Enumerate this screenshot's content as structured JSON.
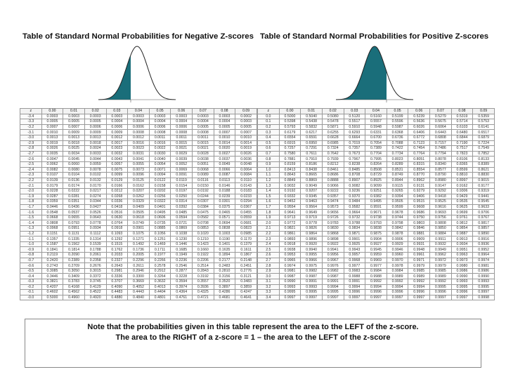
{
  "negative_table": {
    "title": "Table of Standard Normal Probabilities for Negative Z-scores",
    "headers": [
      "z",
      "0.00",
      "0.01",
      "0.02",
      "0.03",
      "0.04",
      "0.05",
      "0.06",
      "0.07",
      "0.08",
      "0.09"
    ],
    "rows": [
      [
        "-3.4",
        "0.0003",
        "0.0003",
        "0.0003",
        "0.0003",
        "0.0003",
        "0.0003",
        "0.0003",
        "0.0003",
        "0.0003",
        "0.0002"
      ],
      [
        "-3.3",
        "0.0005",
        "0.0005",
        "0.0005",
        "0.0004",
        "0.0004",
        "0.0004",
        "0.0004",
        "0.0004",
        "0.0004",
        "0.0003"
      ],
      [
        "-3.2",
        "0.0007",
        "0.0007",
        "0.0006",
        "0.0006",
        "0.0006",
        "0.0006",
        "0.0006",
        "0.0005",
        "0.0005",
        "0.0005"
      ],
      [
        "-3.1",
        "0.0010",
        "0.0009",
        "0.0009",
        "0.0009",
        "0.0008",
        "0.0008",
        "0.0008",
        "0.0008",
        "0.0007",
        "0.0007"
      ],
      [
        "-3.0",
        "0.0013",
        "0.0013",
        "0.0013",
        "0.0012",
        "0.0012",
        "0.0011",
        "0.0011",
        "0.0011",
        "0.0010",
        "0.0010"
      ],
      [
        "-2.9",
        "0.0019",
        "0.0018",
        "0.0018",
        "0.0017",
        "0.0016",
        "0.0016",
        "0.0015",
        "0.0015",
        "0.0014",
        "0.0014"
      ],
      [
        "-2.8",
        "0.0026",
        "0.0025",
        "0.0024",
        "0.0023",
        "0.0023",
        "0.0022",
        "0.0021",
        "0.0021",
        "0.0020",
        "0.0019"
      ],
      [
        "-2.7",
        "0.0035",
        "0.0034",
        "0.0033",
        "0.0032",
        "0.0031",
        "0.0030",
        "0.0029",
        "0.0028",
        "0.0027",
        "0.0026"
      ],
      [
        "-2.6",
        "0.0047",
        "0.0045",
        "0.0044",
        "0.0043",
        "0.0041",
        "0.0040",
        "0.0039",
        "0.0038",
        "0.0037",
        "0.0036"
      ],
      [
        "-2.5",
        "0.0062",
        "0.0060",
        "0.0059",
        "0.0057",
        "0.0055",
        "0.0054",
        "0.0052",
        "0.0051",
        "0.0049",
        "0.0048"
      ],
      [
        "-2.4",
        "0.0082",
        "0.0080",
        "0.0078",
        "0.0075",
        "0.0073",
        "0.0071",
        "0.0069",
        "0.0068",
        "0.0066",
        "0.0064"
      ],
      [
        "-2.3",
        "0.0107",
        "0.0104",
        "0.0102",
        "0.0099",
        "0.0096",
        "0.0094",
        "0.0091",
        "0.0089",
        "0.0087",
        "0.0084"
      ],
      [
        "-2.2",
        "0.0139",
        "0.0136",
        "0.0132",
        "0.0129",
        "0.0125",
        "0.0122",
        "0.0119",
        "0.0116",
        "0.0113",
        "0.0110"
      ],
      [
        "-2.1",
        "0.0179",
        "0.0174",
        "0.0170",
        "0.0166",
        "0.0162",
        "0.0158",
        "0.0154",
        "0.0150",
        "0.0146",
        "0.0143"
      ],
      [
        "-2.0",
        "0.0228",
        "0.0222",
        "0.0217",
        "0.0212",
        "0.0207",
        "0.0202",
        "0.0197",
        "0.0192",
        "0.0188",
        "0.0183"
      ],
      [
        "-1.9",
        "0.0287",
        "0.0281",
        "0.0274",
        "0.0268",
        "0.0262",
        "0.0256",
        "0.0250",
        "0.0244",
        "0.0239",
        "0.0233"
      ],
      [
        "-1.8",
        "0.0359",
        "0.0351",
        "0.0344",
        "0.0336",
        "0.0329",
        "0.0322",
        "0.0314",
        "0.0307",
        "0.0301",
        "0.0294"
      ],
      [
        "-1.7",
        "0.0446",
        "0.0436",
        "0.0427",
        "0.0418",
        "0.0409",
        "0.0401",
        "0.0392",
        "0.0384",
        "0.0375",
        "0.0367"
      ],
      [
        "-1.6",
        "0.0548",
        "0.0537",
        "0.0526",
        "0.0516",
        "0.0505",
        "0.0495",
        "0.0485",
        "0.0475",
        "0.0465",
        "0.0455"
      ],
      [
        "-1.5",
        "0.0668",
        "0.0655",
        "0.0643",
        "0.0630",
        "0.0618",
        "0.0606",
        "0.0594",
        "0.0582",
        "0.0571",
        "0.0559"
      ],
      [
        "-1.4",
        "0.0808",
        "0.0793",
        "0.0778",
        "0.0764",
        "0.0749",
        "0.0735",
        "0.0721",
        "0.0708",
        "0.0694",
        "0.0681"
      ],
      [
        "-1.3",
        "0.0968",
        "0.0951",
        "0.0934",
        "0.0918",
        "0.0901",
        "0.0885",
        "0.0869",
        "0.0853",
        "0.0838",
        "0.0823"
      ],
      [
        "-1.2",
        "0.1151",
        "0.1131",
        "0.1112",
        "0.1093",
        "0.1075",
        "0.1056",
        "0.1038",
        "0.1020",
        "0.1003",
        "0.0985"
      ],
      [
        "-1.1",
        "0.1357",
        "0.1335",
        "0.1314",
        "0.1292",
        "0.1271",
        "0.1251",
        "0.1230",
        "0.1210",
        "0.1190",
        "0.1170"
      ],
      [
        "-1.0",
        "0.1587",
        "0.1562",
        "0.1539",
        "0.1515",
        "0.1492",
        "0.1469",
        "0.1446",
        "0.1423",
        "0.1401",
        "0.1379"
      ],
      [
        "-0.9",
        "0.1841",
        "0.1814",
        "0.1788",
        "0.1762",
        "0.1736",
        "0.1711",
        "0.1685",
        "0.1660",
        "0.1635",
        "0.1611"
      ],
      [
        "-0.8",
        "0.2119",
        "0.2090",
        "0.2061",
        "0.2033",
        "0.2005",
        "0.1977",
        "0.1949",
        "0.1922",
        "0.1894",
        "0.1867"
      ],
      [
        "-0.7",
        "0.2420",
        "0.2389",
        "0.2358",
        "0.2327",
        "0.2296",
        "0.2266",
        "0.2236",
        "0.2206",
        "0.2177",
        "0.2148"
      ],
      [
        "-0.6",
        "0.2743",
        "0.2709",
        "0.2676",
        "0.2643",
        "0.2611",
        "0.2578",
        "0.2546",
        "0.2514",
        "0.2483",
        "0.2451"
      ],
      [
        "-0.5",
        "0.3085",
        "0.3050",
        "0.3015",
        "0.2981",
        "0.2946",
        "0.2912",
        "0.2877",
        "0.2843",
        "0.2810",
        "0.2776"
      ],
      [
        "-0.4",
        "0.3446",
        "0.3409",
        "0.3372",
        "0.3336",
        "0.3300",
        "0.3264",
        "0.3228",
        "0.3192",
        "0.3156",
        "0.3121"
      ],
      [
        "-0.3",
        "0.3821",
        "0.3783",
        "0.3745",
        "0.3707",
        "0.3669",
        "0.3632",
        "0.3594",
        "0.3557",
        "0.3520",
        "0.3483"
      ],
      [
        "-0.2",
        "0.4207",
        "0.4168",
        "0.4129",
        "0.4090",
        "0.4052",
        "0.4013",
        "0.3974",
        "0.3936",
        "0.3897",
        "0.3859"
      ],
      [
        "-0.1",
        "0.4602",
        "0.4562",
        "0.4522",
        "0.4483",
        "0.4443",
        "0.4404",
        "0.4364",
        "0.4325",
        "0.4286",
        "0.4247"
      ],
      [
        "-0.0",
        "0.5000",
        "0.4960",
        "0.4920",
        "0.4880",
        "0.4840",
        "0.4801",
        "0.4761",
        "0.4721",
        "0.4681",
        "0.4641"
      ]
    ]
  },
  "positive_table": {
    "title": "Table of Standard Normal Probabilities for Positive Z-scores",
    "headers": [
      "z",
      "0.00",
      "0.01",
      "0.02",
      "0.03",
      "0.04",
      "0.05",
      "0.06",
      "0.07",
      "0.08",
      "0.09"
    ],
    "rows": [
      [
        "0.0",
        "0.5000",
        "0.5040",
        "0.5080",
        "0.5120",
        "0.5160",
        "0.5199",
        "0.5239",
        "0.5279",
        "0.5319",
        "0.5359"
      ],
      [
        "0.1",
        "0.5398",
        "0.5438",
        "0.5478",
        "0.5517",
        "0.5557",
        "0.5596",
        "0.5636",
        "0.5675",
        "0.5714",
        "0.5753"
      ],
      [
        "0.2",
        "0.5793",
        "0.5832",
        "0.5871",
        "0.5910",
        "0.5948",
        "0.5987",
        "0.6026",
        "0.6064",
        "0.6103",
        "0.6141"
      ],
      [
        "0.3",
        "0.6179",
        "0.6217",
        "0.6255",
        "0.6293",
        "0.6331",
        "0.6368",
        "0.6406",
        "0.6443",
        "0.6480",
        "0.6517"
      ],
      [
        "0.4",
        "0.6554",
        "0.6591",
        "0.6628",
        "0.6664",
        "0.6700",
        "0.6736",
        "0.6772",
        "0.6808",
        "0.6844",
        "0.6879"
      ],
      [
        "0.5",
        "0.6915",
        "0.6950",
        "0.6985",
        "0.7019",
        "0.7054",
        "0.7088",
        "0.7123",
        "0.7157",
        "0.7190",
        "0.7224"
      ],
      [
        "0.6",
        "0.7257",
        "0.7291",
        "0.7324",
        "0.7357",
        "0.7389",
        "0.7422",
        "0.7454",
        "0.7486",
        "0.7517",
        "0.7549"
      ],
      [
        "0.7",
        "0.7580",
        "0.7611",
        "0.7642",
        "0.7673",
        "0.7704",
        "0.7734",
        "0.7764",
        "0.7794",
        "0.7823",
        "0.7852"
      ],
      [
        "0.8",
        "0.7881",
        "0.7910",
        "0.7939",
        "0.7967",
        "0.7995",
        "0.8023",
        "0.8051",
        "0.8078",
        "0.8106",
        "0.8133"
      ],
      [
        "0.9",
        "0.8159",
        "0.8186",
        "0.8212",
        "0.8238",
        "0.8264",
        "0.8289",
        "0.8315",
        "0.8340",
        "0.8365",
        "0.8389"
      ],
      [
        "1.0",
        "0.8413",
        "0.8438",
        "0.8461",
        "0.8485",
        "0.8508",
        "0.8531",
        "0.8554",
        "0.8577",
        "0.8599",
        "0.8621"
      ],
      [
        "1.1",
        "0.8643",
        "0.8665",
        "0.8686",
        "0.8708",
        "0.8729",
        "0.8749",
        "0.8770",
        "0.8790",
        "0.8810",
        "0.8830"
      ],
      [
        "1.2",
        "0.8849",
        "0.8869",
        "0.8888",
        "0.8907",
        "0.8925",
        "0.8944",
        "0.8962",
        "0.8980",
        "0.8997",
        "0.9015"
      ],
      [
        "1.3",
        "0.9032",
        "0.9049",
        "0.9066",
        "0.9082",
        "0.9099",
        "0.9115",
        "0.9131",
        "0.9147",
        "0.9162",
        "0.9177"
      ],
      [
        "1.4",
        "0.9192",
        "0.9207",
        "0.9222",
        "0.9236",
        "0.9251",
        "0.9265",
        "0.9279",
        "0.9292",
        "0.9306",
        "0.9319"
      ],
      [
        "1.5",
        "0.9332",
        "0.9345",
        "0.9357",
        "0.9370",
        "0.9382",
        "0.9394",
        "0.9406",
        "0.9418",
        "0.9429",
        "0.9441"
      ],
      [
        "1.6",
        "0.9452",
        "0.9463",
        "0.9474",
        "0.9484",
        "0.9495",
        "0.9505",
        "0.9515",
        "0.9525",
        "0.9535",
        "0.9545"
      ],
      [
        "1.7",
        "0.9554",
        "0.9564",
        "0.9573",
        "0.9582",
        "0.9591",
        "0.9599",
        "0.9608",
        "0.9616",
        "0.9625",
        "0.9633"
      ],
      [
        "1.8",
        "0.9641",
        "0.9649",
        "0.9656",
        "0.9664",
        "0.9671",
        "0.9678",
        "0.9686",
        "0.9693",
        "0.9699",
        "0.9706"
      ],
      [
        "1.9",
        "0.9713",
        "0.9719",
        "0.9726",
        "0.9732",
        "0.9738",
        "0.9744",
        "0.9750",
        "0.9756",
        "0.9761",
        "0.9767"
      ],
      [
        "2.0",
        "0.9772",
        "0.9778",
        "0.9783",
        "0.9788",
        "0.9793",
        "0.9798",
        "0.9803",
        "0.9808",
        "0.9812",
        "0.9817"
      ],
      [
        "2.1",
        "0.9821",
        "0.9826",
        "0.9830",
        "0.9834",
        "0.9838",
        "0.9842",
        "0.9846",
        "0.9850",
        "0.9854",
        "0.9857"
      ],
      [
        "2.2",
        "0.9861",
        "0.9864",
        "0.9868",
        "0.9871",
        "0.9875",
        "0.9878",
        "0.9881",
        "0.9884",
        "0.9887",
        "0.9890"
      ],
      [
        "2.3",
        "0.9893",
        "0.9896",
        "0.9898",
        "0.9901",
        "0.9904",
        "0.9906",
        "0.9909",
        "0.9911",
        "0.9913",
        "0.9916"
      ],
      [
        "2.4",
        "0.9918",
        "0.9920",
        "0.9922",
        "0.9925",
        "0.9927",
        "0.9929",
        "0.9931",
        "0.9932",
        "0.9934",
        "0.9936"
      ],
      [
        "2.5",
        "0.9938",
        "0.9940",
        "0.9941",
        "0.9943",
        "0.9945",
        "0.9946",
        "0.9948",
        "0.9949",
        "0.9951",
        "0.9952"
      ],
      [
        "2.6",
        "0.9953",
        "0.9955",
        "0.9956",
        "0.9957",
        "0.9959",
        "0.9960",
        "0.9961",
        "0.9962",
        "0.9963",
        "0.9964"
      ],
      [
        "2.7",
        "0.9965",
        "0.9966",
        "0.9967",
        "0.9968",
        "0.9969",
        "0.9970",
        "0.9971",
        "0.9972",
        "0.9973",
        "0.9974"
      ],
      [
        "2.8",
        "0.9974",
        "0.9975",
        "0.9976",
        "0.9977",
        "0.9977",
        "0.9978",
        "0.9979",
        "0.9979",
        "0.9980",
        "0.9981"
      ],
      [
        "2.9",
        "0.9981",
        "0.9982",
        "0.9982",
        "0.9983",
        "0.9984",
        "0.9984",
        "0.9985",
        "0.9985",
        "0.9986",
        "0.9986"
      ],
      [
        "3.0",
        "0.9987",
        "0.9987",
        "0.9987",
        "0.9988",
        "0.9988",
        "0.9989",
        "0.9989",
        "0.9989",
        "0.9990",
        "0.9990"
      ],
      [
        "3.1",
        "0.9990",
        "0.9991",
        "0.9991",
        "0.9991",
        "0.9992",
        "0.9992",
        "0.9992",
        "0.9992",
        "0.9993",
        "0.9993"
      ],
      [
        "3.2",
        "0.9993",
        "0.9993",
        "0.9994",
        "0.9994",
        "0.9994",
        "0.9994",
        "0.9994",
        "0.9995",
        "0.9995",
        "0.9995"
      ],
      [
        "3.3",
        "0.9995",
        "0.9995",
        "0.9995",
        "0.9996",
        "0.9996",
        "0.9996",
        "0.9996",
        "0.9996",
        "0.9996",
        "0.9997"
      ],
      [
        "3.4",
        "0.9997",
        "0.9997",
        "0.9997",
        "0.9997",
        "0.9997",
        "0.9997",
        "0.9997",
        "0.9997",
        "0.9997",
        "0.9998"
      ]
    ]
  },
  "note": {
    "line1": "Note that the probabilities given in this table represent the area to the LEFT of the z-score.",
    "line2": "The area to the RIGHT of a z-score = 1 – the area to the LEFT of the z-score"
  },
  "colors": {
    "shade": "#1a6e7a",
    "curve": "#222222"
  }
}
